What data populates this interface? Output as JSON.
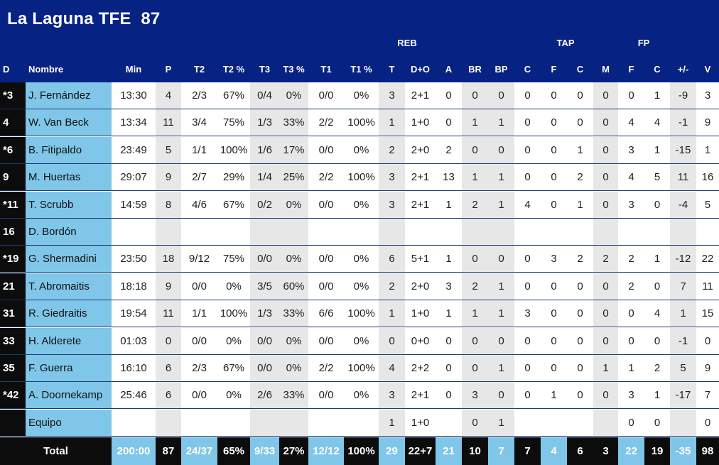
{
  "header": {
    "title": "La Laguna TFE  87",
    "groups": {
      "reb": "REB",
      "tap": "TAP",
      "fp": "FP"
    },
    "columns": [
      "D",
      "Nombre",
      "Min",
      "P",
      "T2",
      "T2 %",
      "T3",
      "T3 %",
      "T1",
      "T1 %",
      "T",
      "D+O",
      "A",
      "BR",
      "BP",
      "C",
      "F",
      "C",
      "M",
      "F",
      "C",
      "+/-",
      "V"
    ]
  },
  "rows": [
    [
      "*3",
      "J. Fernández",
      "13:30",
      "4",
      "2/3",
      "67%",
      "0/4",
      "0%",
      "0/0",
      "0%",
      "3",
      "2+1",
      "0",
      "0",
      "0",
      "0",
      "0",
      "0",
      "0",
      "0",
      "1",
      "-9",
      "3"
    ],
    [
      "4",
      "W. Van Beck",
      "13:34",
      "11",
      "3/4",
      "75%",
      "1/3",
      "33%",
      "2/2",
      "100%",
      "1",
      "1+0",
      "0",
      "1",
      "1",
      "0",
      "0",
      "0",
      "0",
      "4",
      "4",
      "-1",
      "9"
    ],
    [
      "*6",
      "B. Fitipaldo",
      "23:49",
      "5",
      "1/1",
      "100%",
      "1/6",
      "17%",
      "0/0",
      "0%",
      "2",
      "2+0",
      "2",
      "0",
      "0",
      "0",
      "0",
      "1",
      "0",
      "3",
      "1",
      "-15",
      "1"
    ],
    [
      "9",
      "M. Huertas",
      "29:07",
      "9",
      "2/7",
      "29%",
      "1/4",
      "25%",
      "2/2",
      "100%",
      "3",
      "2+1",
      "13",
      "1",
      "1",
      "0",
      "0",
      "2",
      "0",
      "4",
      "5",
      "11",
      "16"
    ],
    [
      "*11",
      "T. Scrubb",
      "14:59",
      "8",
      "4/6",
      "67%",
      "0/2",
      "0%",
      "0/0",
      "0%",
      "3",
      "2+1",
      "1",
      "2",
      "1",
      "4",
      "0",
      "1",
      "0",
      "3",
      "0",
      "-4",
      "5"
    ],
    [
      "16",
      "D. Bordón",
      "",
      "",
      "",
      "",
      "",
      "",
      "",
      "",
      "",
      "",
      "",
      "",
      "",
      "",
      "",
      "",
      "",
      "",
      "",
      "",
      ""
    ],
    [
      "*19",
      "G. Shermadini",
      "23:50",
      "18",
      "9/12",
      "75%",
      "0/0",
      "0%",
      "0/0",
      "0%",
      "6",
      "5+1",
      "1",
      "0",
      "0",
      "0",
      "3",
      "2",
      "2",
      "2",
      "1",
      "-12",
      "22"
    ],
    [
      "21",
      "T. Abromaitis",
      "18:18",
      "9",
      "0/0",
      "0%",
      "3/5",
      "60%",
      "0/0",
      "0%",
      "2",
      "2+0",
      "3",
      "2",
      "1",
      "0",
      "0",
      "0",
      "0",
      "2",
      "0",
      "7",
      "11"
    ],
    [
      "31",
      "R. Giedraitis",
      "19:54",
      "11",
      "1/1",
      "100%",
      "1/3",
      "33%",
      "6/6",
      "100%",
      "1",
      "1+0",
      "1",
      "1",
      "1",
      "3",
      "0",
      "0",
      "0",
      "0",
      "4",
      "1",
      "15"
    ],
    [
      "33",
      "H. Alderete",
      "01:03",
      "0",
      "0/0",
      "0%",
      "0/0",
      "0%",
      "0/0",
      "0%",
      "0",
      "0+0",
      "0",
      "0",
      "0",
      "0",
      "0",
      "0",
      "0",
      "0",
      "0",
      "-1",
      "0"
    ],
    [
      "35",
      "F. Guerra",
      "16:10",
      "6",
      "2/3",
      "67%",
      "0/0",
      "0%",
      "2/2",
      "100%",
      "4",
      "2+2",
      "0",
      "0",
      "1",
      "0",
      "0",
      "0",
      "1",
      "1",
      "2",
      "5",
      "9"
    ],
    [
      "*42",
      "A. Doornekamp",
      "25:46",
      "6",
      "0/0",
      "0%",
      "2/6",
      "33%",
      "0/0",
      "0%",
      "3",
      "2+1",
      "0",
      "3",
      "0",
      "0",
      "1",
      "0",
      "0",
      "3",
      "1",
      "-17",
      "7"
    ],
    [
      "",
      "Equipo",
      "",
      "",
      "",
      "",
      "",
      "",
      "",
      "",
      "1",
      "1+0",
      "",
      "0",
      "1",
      "",
      "",
      "",
      "",
      "0",
      "0",
      "",
      "0"
    ]
  ],
  "total": {
    "label": "Total",
    "values": [
      "200:00",
      "87",
      "24/37",
      "65%",
      "9/33",
      "27%",
      "12/12",
      "100%",
      "29",
      "22+7",
      "21",
      "10",
      "7",
      "7",
      "4",
      "6",
      "3",
      "22",
      "19",
      "-35",
      "98"
    ]
  },
  "colors": {
    "header_bg": "#062283",
    "accent_blue": "#7fc6e8",
    "stripe_gray": "#e7e7e7",
    "dark": "#0c0c0c"
  }
}
